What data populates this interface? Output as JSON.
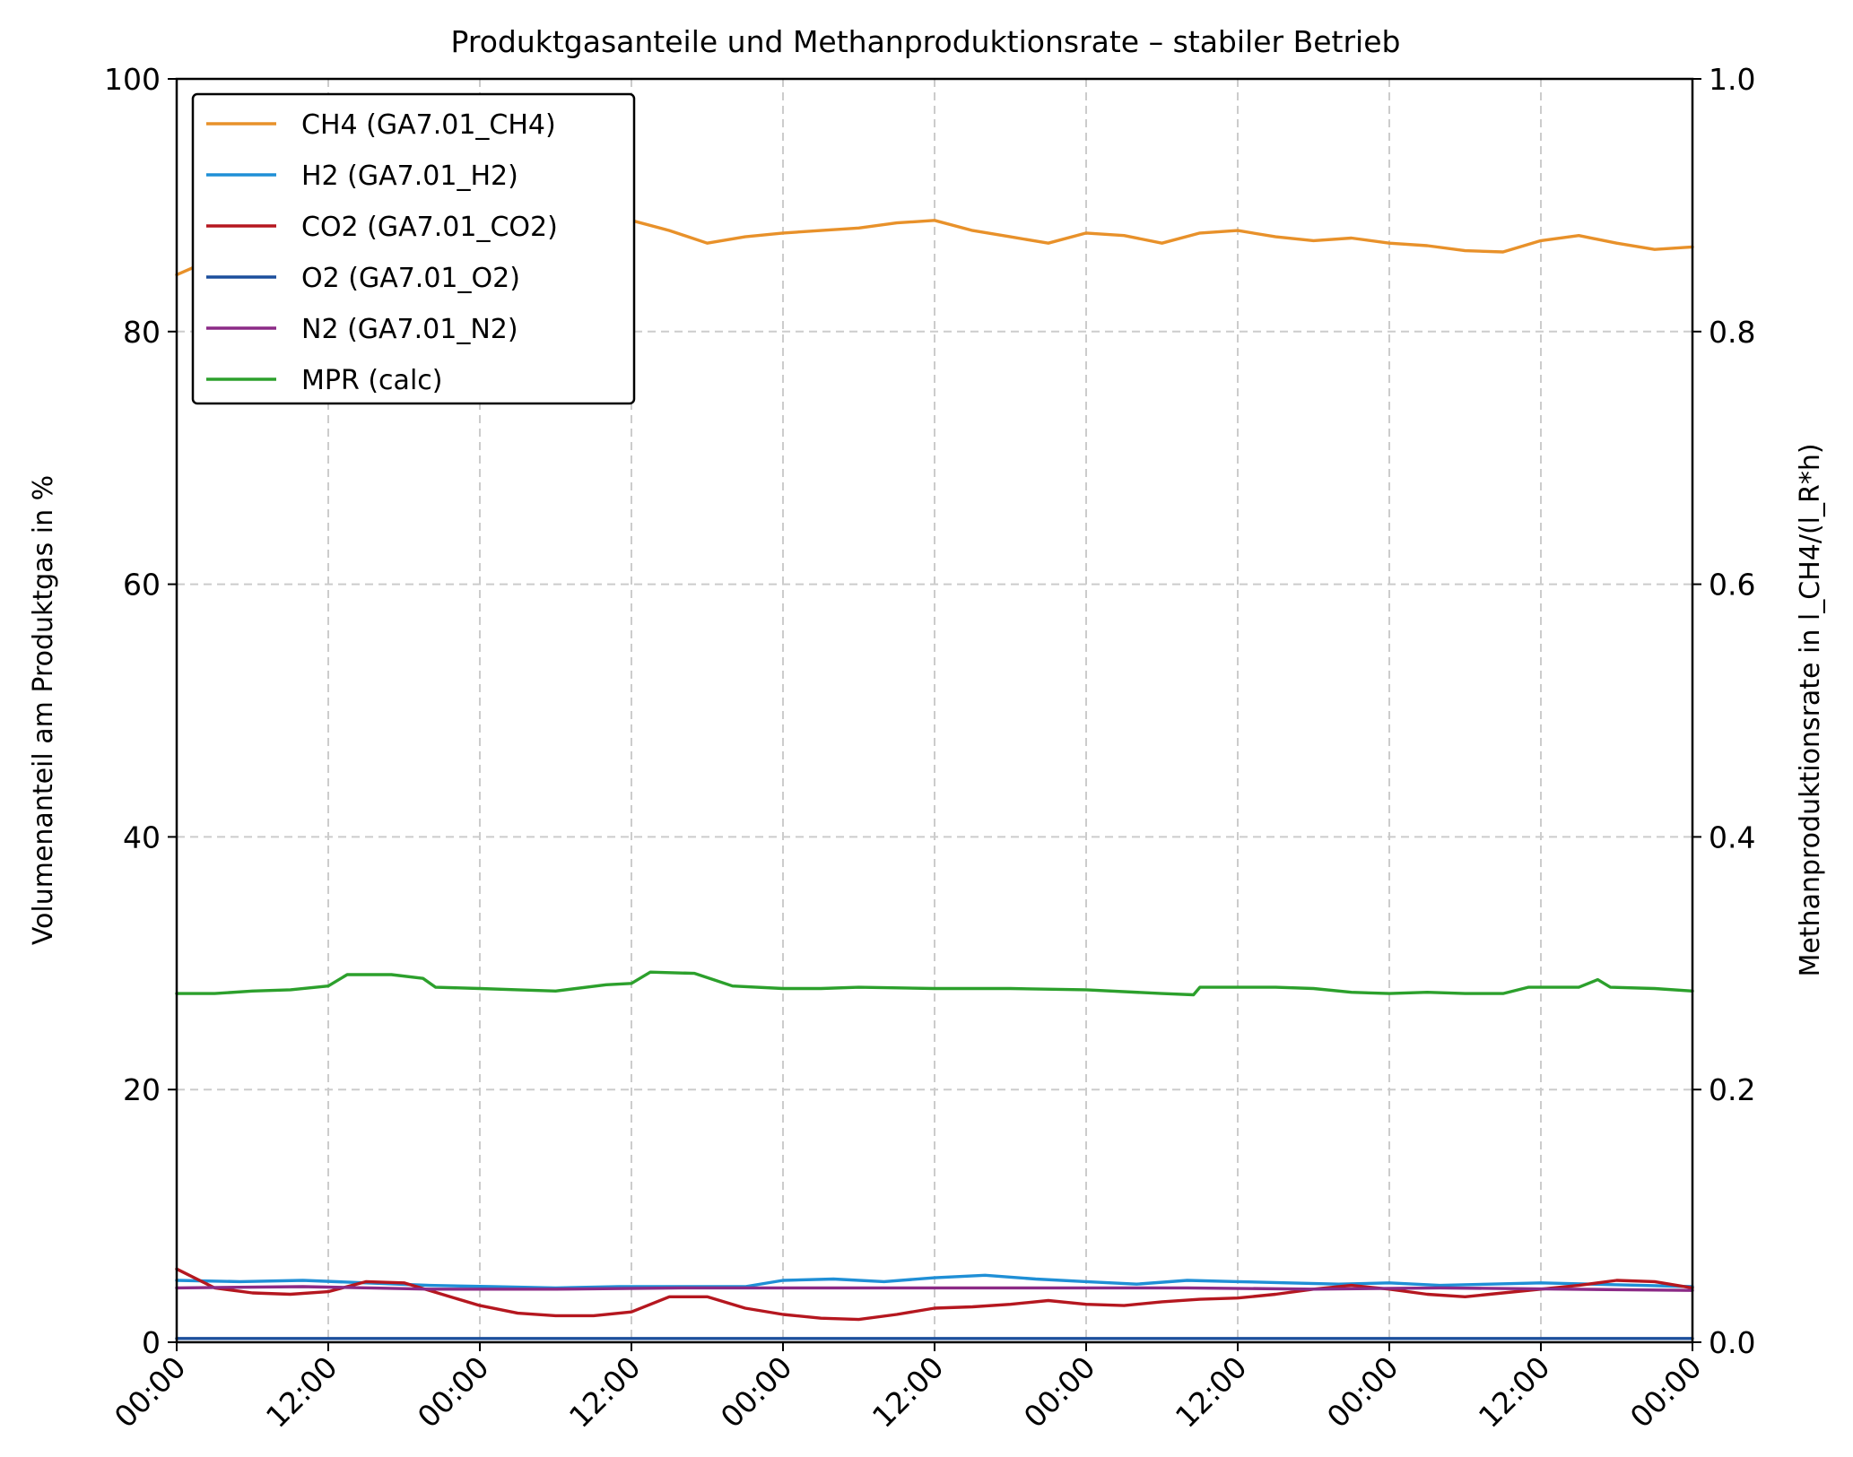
{
  "chart_data": {
    "type": "line",
    "title": "Produktgasanteile und Methanproduktionsrate – stabiler Betrieb",
    "ylabel": "Volumenanteil am Produktgas in %",
    "y2label": "Methanproduktionsrate in l_CH4/(l_R*h)",
    "ylim": [
      0,
      100
    ],
    "y2lim": [
      0,
      1.0
    ],
    "yticks": [
      "0",
      "20",
      "40",
      "60",
      "80",
      "100"
    ],
    "y2ticks": [
      "0.0",
      "0.2",
      "0.4",
      "0.6",
      "0.8",
      "1.0"
    ],
    "xticks": [
      "00:00",
      "12:00",
      "00:00",
      "12:00",
      "00:00",
      "12:00",
      "00:00",
      "12:00",
      "00:00",
      "12:00",
      "00:00"
    ],
    "x_unit": "hours",
    "xlim": [
      0,
      120
    ],
    "grid": true,
    "legend_position": "top-left",
    "series": [
      {
        "name": "CH4 (GA7.01_CH4)",
        "axis": "left",
        "color": "#e8912a",
        "x": [
          0,
          3,
          6,
          9,
          12,
          15,
          18,
          21,
          24,
          27,
          30,
          33,
          36,
          39,
          42,
          45,
          48,
          51,
          54,
          57,
          60,
          63,
          66,
          69,
          72,
          75,
          78,
          81,
          84,
          87,
          90,
          93,
          96,
          99,
          102,
          105,
          108,
          111,
          114,
          117,
          120
        ],
        "y": [
          84.5,
          85.8,
          86.4,
          86.6,
          86.8,
          87.0,
          87.3,
          87.6,
          88.2,
          88.6,
          88.9,
          88.9,
          88.8,
          88.0,
          87.0,
          87.5,
          87.8,
          88.0,
          88.2,
          88.6,
          88.8,
          88.0,
          87.5,
          87.0,
          87.8,
          87.6,
          87.0,
          87.8,
          88.0,
          87.5,
          87.2,
          87.4,
          87.0,
          86.8,
          86.4,
          86.3,
          87.2,
          87.6,
          87.0,
          86.5,
          86.7
        ]
      },
      {
        "name": "H2 (GA7.01_H2)",
        "axis": "left",
        "color": "#1f8fd6",
        "x": [
          0,
          5,
          10,
          15,
          20,
          25,
          30,
          35,
          40,
          45,
          48,
          52,
          56,
          60,
          64,
          68,
          72,
          76,
          80,
          84,
          88,
          92,
          96,
          100,
          104,
          108,
          112,
          116,
          120
        ],
        "y": [
          4.9,
          4.8,
          4.9,
          4.7,
          4.5,
          4.4,
          4.3,
          4.4,
          4.4,
          4.4,
          4.9,
          5.0,
          4.8,
          5.1,
          5.3,
          5.0,
          4.8,
          4.6,
          4.9,
          4.8,
          4.7,
          4.6,
          4.7,
          4.5,
          4.6,
          4.7,
          4.6,
          4.5,
          4.4
        ]
      },
      {
        "name": "CO2 (GA7.01_CO2)",
        "axis": "left",
        "color": "#b5171f",
        "x": [
          0,
          3,
          6,
          9,
          12,
          15,
          18,
          21,
          24,
          27,
          30,
          33,
          36,
          39,
          42,
          45,
          48,
          51,
          54,
          57,
          60,
          63,
          66,
          69,
          72,
          75,
          78,
          81,
          84,
          87,
          90,
          93,
          96,
          99,
          102,
          105,
          108,
          111,
          114,
          117,
          120
        ],
        "y": [
          5.8,
          4.3,
          3.9,
          3.8,
          4.0,
          4.8,
          4.7,
          3.8,
          2.9,
          2.3,
          2.1,
          2.1,
          2.4,
          3.6,
          3.6,
          2.7,
          2.2,
          1.9,
          1.8,
          2.2,
          2.7,
          2.8,
          3.0,
          3.3,
          3.0,
          2.9,
          3.2,
          3.4,
          3.5,
          3.8,
          4.2,
          4.5,
          4.2,
          3.8,
          3.6,
          3.9,
          4.2,
          4.5,
          4.9,
          4.8,
          4.3
        ]
      },
      {
        "name": "O2 (GA7.01_O2)",
        "axis": "left",
        "color": "#1c4f9c",
        "x": [
          0,
          10,
          20,
          30,
          40,
          50,
          60,
          70,
          80,
          90,
          100,
          110,
          120
        ],
        "y": [
          0.3,
          0.3,
          0.3,
          0.3,
          0.3,
          0.3,
          0.3,
          0.3,
          0.3,
          0.3,
          0.3,
          0.3,
          0.3
        ]
      },
      {
        "name": "N2 (GA7.01_N2)",
        "axis": "left",
        "color": "#8b2a86",
        "x": [
          0,
          10,
          20,
          30,
          40,
          50,
          60,
          70,
          80,
          90,
          100,
          110,
          120
        ],
        "y": [
          4.3,
          4.4,
          4.2,
          4.2,
          4.3,
          4.3,
          4.3,
          4.3,
          4.3,
          4.2,
          4.3,
          4.2,
          4.1
        ]
      },
      {
        "name": "MPR (calc)",
        "axis": "right",
        "color": "#2ca02c",
        "x": [
          0,
          3,
          6,
          9,
          12,
          13.5,
          17,
          19.5,
          20.5,
          24,
          27,
          30,
          34,
          36,
          37.5,
          41,
          42.5,
          44,
          48,
          51,
          54,
          60,
          66,
          72,
          78,
          80.5,
          81,
          87,
          90,
          93,
          96,
          99,
          102,
          105,
          107,
          108,
          111,
          112.5,
          113.5,
          117,
          120
        ],
        "y": [
          0.276,
          0.276,
          0.278,
          0.279,
          0.282,
          0.291,
          0.291,
          0.288,
          0.281,
          0.28,
          0.279,
          0.278,
          0.283,
          0.284,
          0.293,
          0.292,
          0.287,
          0.282,
          0.28,
          0.28,
          0.281,
          0.28,
          0.28,
          0.279,
          0.276,
          0.275,
          0.281,
          0.281,
          0.28,
          0.277,
          0.276,
          0.277,
          0.276,
          0.276,
          0.281,
          0.281,
          0.281,
          0.287,
          0.281,
          0.28,
          0.278
        ]
      }
    ]
  }
}
